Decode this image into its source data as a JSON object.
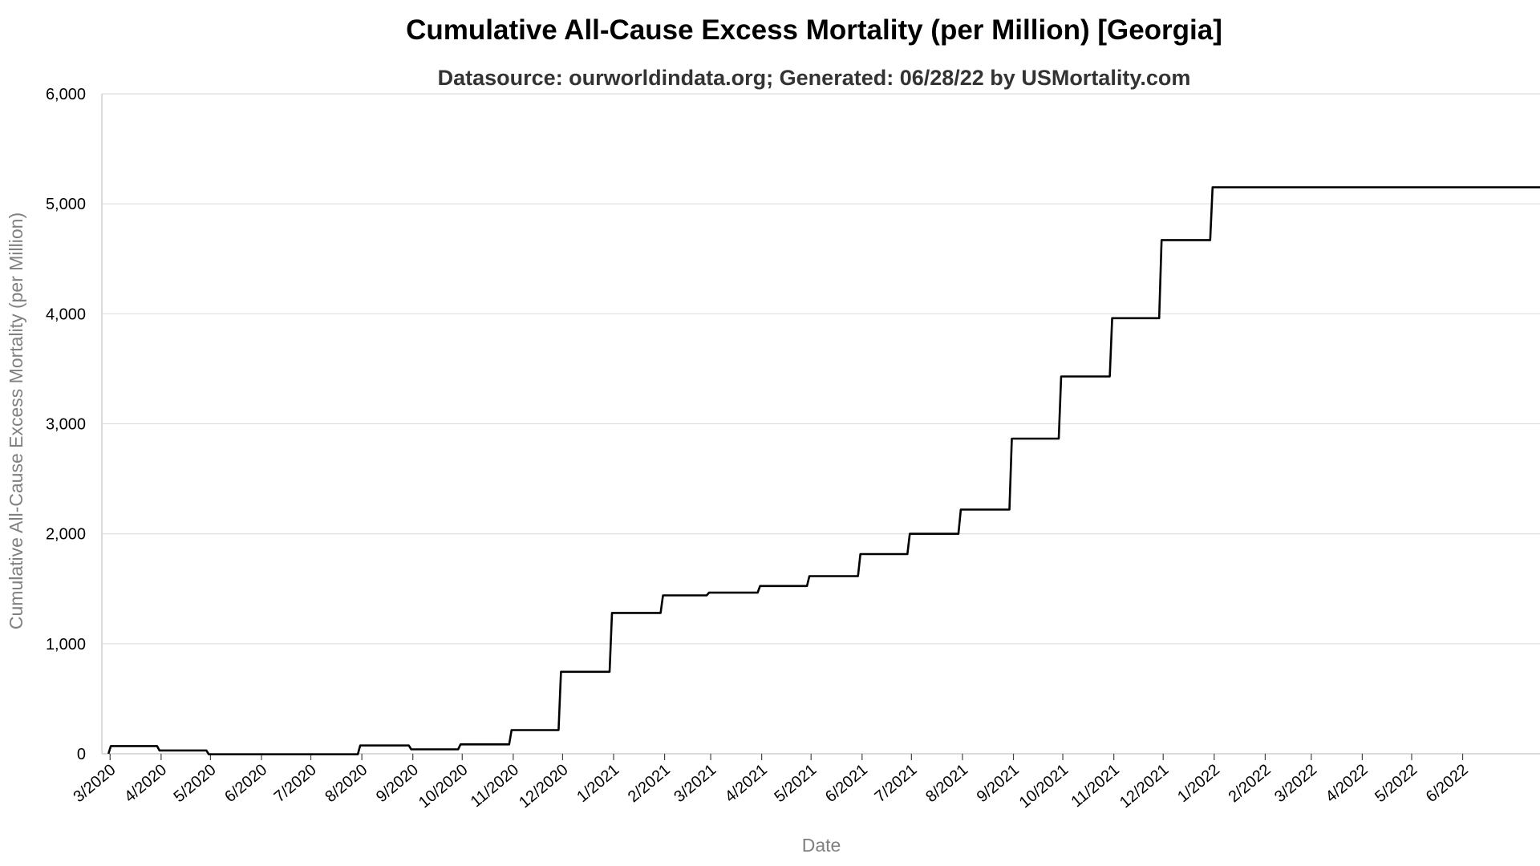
{
  "chart_data": {
    "type": "line",
    "title": "Cumulative All-Cause Excess Mortality (per Million) [Georgia]",
    "subtitle": "Datasource: ourworldindata.org; Generated: 06/28/22 by USMortality.com",
    "xlabel": "Date",
    "ylabel": "Cumulative All-Cause Excess Mortality (per Million)",
    "xlim": [
      "2020-02-25",
      "2022-07-18"
    ],
    "ylim": [
      0,
      6000
    ],
    "grid": true,
    "legend": "none",
    "colors": {
      "line": "#000000",
      "grid": "#dedede",
      "axis": "#cfcfcf"
    },
    "y_ticks": [
      {
        "value": 0,
        "label": "0"
      },
      {
        "value": 1000,
        "label": "1,000"
      },
      {
        "value": 2000,
        "label": "2,000"
      },
      {
        "value": 3000,
        "label": "3,000"
      },
      {
        "value": 4000,
        "label": "4,000"
      },
      {
        "value": 5000,
        "label": "5,000"
      },
      {
        "value": 6000,
        "label": "6,000"
      }
    ],
    "x_ticks": [
      {
        "date": "2020-03-01",
        "label": "3/2020"
      },
      {
        "date": "2020-04-01",
        "label": "4/2020"
      },
      {
        "date": "2020-05-01",
        "label": "5/2020"
      },
      {
        "date": "2020-06-01",
        "label": "6/2020"
      },
      {
        "date": "2020-07-01",
        "label": "7/2020"
      },
      {
        "date": "2020-08-01",
        "label": "8/2020"
      },
      {
        "date": "2020-09-01",
        "label": "9/2020"
      },
      {
        "date": "2020-10-01",
        "label": "10/2020"
      },
      {
        "date": "2020-11-01",
        "label": "11/2020"
      },
      {
        "date": "2020-12-01",
        "label": "12/2020"
      },
      {
        "date": "2021-01-01",
        "label": "1/2021"
      },
      {
        "date": "2021-02-01",
        "label": "2/2021"
      },
      {
        "date": "2021-03-01",
        "label": "3/2021"
      },
      {
        "date": "2021-04-01",
        "label": "4/2021"
      },
      {
        "date": "2021-05-01",
        "label": "5/2021"
      },
      {
        "date": "2021-06-01",
        "label": "6/2021"
      },
      {
        "date": "2021-07-01",
        "label": "7/2021"
      },
      {
        "date": "2021-08-01",
        "label": "8/2021"
      },
      {
        "date": "2021-09-01",
        "label": "9/2021"
      },
      {
        "date": "2021-10-01",
        "label": "10/2021"
      },
      {
        "date": "2021-11-01",
        "label": "11/2021"
      },
      {
        "date": "2021-12-01",
        "label": "12/2021"
      },
      {
        "date": "2022-01-01",
        "label": "1/2022"
      },
      {
        "date": "2022-02-01",
        "label": "2/2022"
      },
      {
        "date": "2022-03-01",
        "label": "3/2022"
      },
      {
        "date": "2022-04-01",
        "label": "4/2022"
      },
      {
        "date": "2022-05-01",
        "label": "5/2022"
      },
      {
        "date": "2022-06-01",
        "label": "6/2022"
      }
    ],
    "series": [
      {
        "step": "after",
        "points": [
          {
            "x": "2020-02-29",
            "y": 70
          },
          {
            "x": "2020-03-31",
            "y": 30
          },
          {
            "x": "2020-04-30",
            "y": -5
          },
          {
            "x": "2020-06-30",
            "y": -5
          },
          {
            "x": "2020-07-31",
            "y": 75
          },
          {
            "x": "2020-08-31",
            "y": 40
          },
          {
            "x": "2020-09-30",
            "y": 85
          },
          {
            "x": "2020-10-31",
            "y": 215
          },
          {
            "x": "2020-11-30",
            "y": 745
          },
          {
            "x": "2020-12-31",
            "y": 1280
          },
          {
            "x": "2021-01-31",
            "y": 1440
          },
          {
            "x": "2021-02-28",
            "y": 1465
          },
          {
            "x": "2021-03-31",
            "y": 1525
          },
          {
            "x": "2021-04-30",
            "y": 1615
          },
          {
            "x": "2021-05-31",
            "y": 1815
          },
          {
            "x": "2021-06-30",
            "y": 2000
          },
          {
            "x": "2021-07-31",
            "y": 2220
          },
          {
            "x": "2021-08-31",
            "y": 2865
          },
          {
            "x": "2021-09-30",
            "y": 3430
          },
          {
            "x": "2021-10-31",
            "y": 3960
          },
          {
            "x": "2021-11-30",
            "y": 4670
          },
          {
            "x": "2021-12-31",
            "y": 5150
          },
          {
            "x": "2022-07-18",
            "y": 5150
          }
        ]
      }
    ]
  }
}
